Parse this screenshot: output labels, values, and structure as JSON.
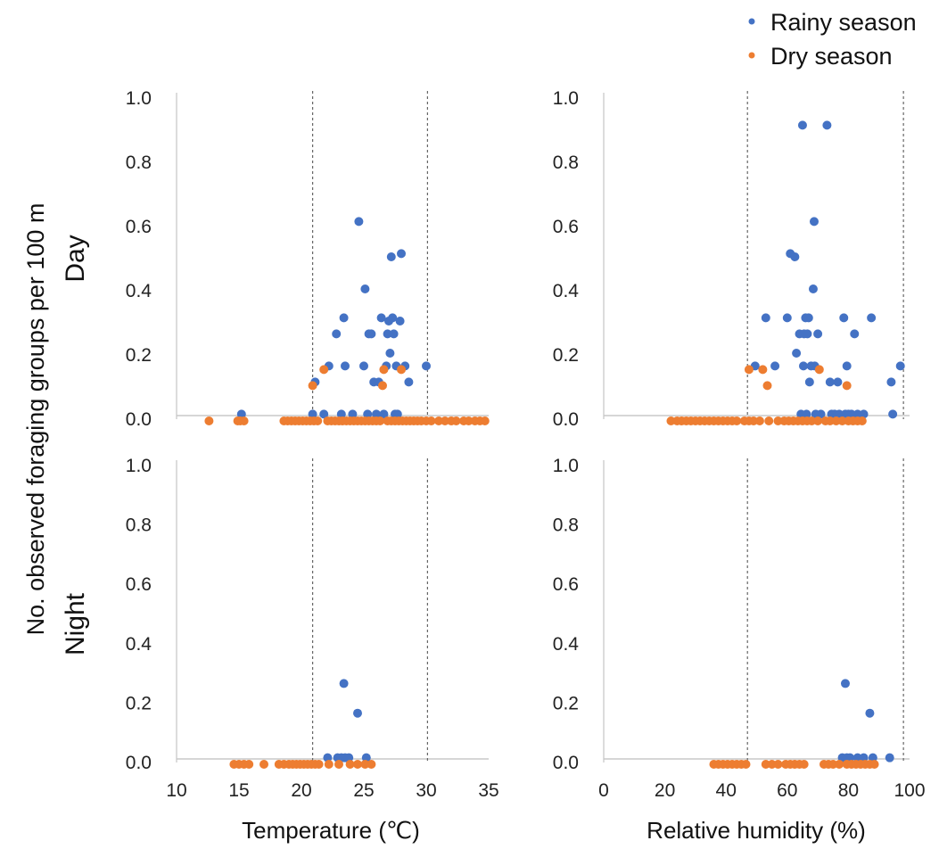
{
  "legend": [
    {
      "label": "Rainy season",
      "color": "#4472C4"
    },
    {
      "label": "Dry season",
      "color": "#ED7D31"
    }
  ],
  "shared_ylabel": "No. observed foraging groups per 100 m",
  "row_labels": [
    "Day",
    "Night"
  ],
  "chart_data": [
    {
      "type": "scatter",
      "id": "day-temperature",
      "row": "Day",
      "xlabel": "",
      "ylabel": "",
      "xlim": [
        10,
        35
      ],
      "ylim": [
        0,
        1
      ],
      "xticks": [
        10,
        15,
        20,
        25,
        30,
        35
      ],
      "yticks": [
        "0.0",
        "0.2",
        "0.4",
        "0.6",
        "0.8",
        "1.0"
      ],
      "reference_lines_x": [
        20.9,
        30.1
      ],
      "series": [
        {
          "name": "Rainy season",
          "color": "#4472C4",
          "points": [
            [
              15.2,
              0.01
            ],
            [
              20.9,
              0.01
            ],
            [
              21.1,
              0.11
            ],
            [
              21.8,
              0.01
            ],
            [
              22.2,
              0.16
            ],
            [
              22.8,
              0.26
            ],
            [
              23.2,
              0.01
            ],
            [
              23.4,
              0.31
            ],
            [
              23.5,
              0.16
            ],
            [
              24.1,
              0.01
            ],
            [
              24.6,
              0.61
            ],
            [
              25.0,
              0.16
            ],
            [
              25.1,
              0.4
            ],
            [
              25.3,
              0.01
            ],
            [
              25.4,
              0.26
            ],
            [
              25.6,
              0.26
            ],
            [
              25.8,
              0.11
            ],
            [
              26.0,
              0.01
            ],
            [
              26.2,
              0.11
            ],
            [
              26.4,
              0.31
            ],
            [
              26.6,
              0.01
            ],
            [
              26.8,
              0.16
            ],
            [
              26.9,
              0.26
            ],
            [
              27.0,
              0.3
            ],
            [
              27.1,
              0.2
            ],
            [
              27.2,
              0.5
            ],
            [
              27.3,
              0.31
            ],
            [
              27.4,
              0.26
            ],
            [
              27.5,
              0.01
            ],
            [
              27.6,
              0.16
            ],
            [
              27.7,
              0.01
            ],
            [
              27.9,
              0.3
            ],
            [
              28.0,
              0.51
            ],
            [
              28.3,
              0.16
            ],
            [
              28.6,
              0.11
            ],
            [
              30.0,
              0.16
            ]
          ]
        },
        {
          "name": "Dry season",
          "color": "#ED7D31",
          "points": [
            [
              12.6,
              0
            ],
            [
              14.9,
              0
            ],
            [
              15.1,
              0
            ],
            [
              15.4,
              0
            ],
            [
              18.6,
              0
            ],
            [
              18.9,
              0
            ],
            [
              19.2,
              0
            ],
            [
              19.5,
              0
            ],
            [
              19.8,
              0
            ],
            [
              20.1,
              0
            ],
            [
              20.4,
              0
            ],
            [
              20.7,
              0
            ],
            [
              20.9,
              0.11
            ],
            [
              21.0,
              0
            ],
            [
              21.3,
              0
            ],
            [
              21.8,
              0.16
            ],
            [
              22.1,
              0
            ],
            [
              22.4,
              0
            ],
            [
              22.7,
              0
            ],
            [
              23.0,
              0
            ],
            [
              23.3,
              0
            ],
            [
              23.6,
              0
            ],
            [
              23.9,
              0
            ],
            [
              24.2,
              0
            ],
            [
              24.5,
              0
            ],
            [
              24.8,
              0
            ],
            [
              25.1,
              0
            ],
            [
              25.4,
              0
            ],
            [
              25.7,
              0
            ],
            [
              26.0,
              0
            ],
            [
              26.3,
              0
            ],
            [
              26.5,
              0.11
            ],
            [
              26.6,
              0.16
            ],
            [
              26.9,
              0
            ],
            [
              27.2,
              0
            ],
            [
              27.5,
              0
            ],
            [
              27.8,
              0
            ],
            [
              28.0,
              0.16
            ],
            [
              28.1,
              0
            ],
            [
              28.4,
              0
            ],
            [
              28.7,
              0
            ],
            [
              29.0,
              0
            ],
            [
              29.3,
              0
            ],
            [
              29.6,
              0
            ],
            [
              30.0,
              0
            ],
            [
              30.4,
              0
            ],
            [
              31.0,
              0
            ],
            [
              31.5,
              0
            ],
            [
              32.0,
              0
            ],
            [
              32.4,
              0
            ],
            [
              33.0,
              0
            ],
            [
              33.4,
              0
            ],
            [
              33.9,
              0
            ],
            [
              34.3,
              0
            ],
            [
              34.7,
              0
            ]
          ]
        }
      ]
    },
    {
      "type": "scatter",
      "id": "day-humidity",
      "row": "Day",
      "xlabel": "",
      "ylabel": "",
      "xlim": [
        0,
        100
      ],
      "ylim": [
        0,
        1
      ],
      "xticks": [
        0,
        20,
        40,
        60,
        80,
        100
      ],
      "yticks": [
        "0.0",
        "0.2",
        "0.4",
        "0.6",
        "0.8",
        "1.0"
      ],
      "reference_lines_x": [
        47.0,
        98.0
      ],
      "series": [
        {
          "name": "Rainy season",
          "color": "#4472C4",
          "points": [
            [
              49.5,
              0.16
            ],
            [
              53.0,
              0.31
            ],
            [
              56.0,
              0.16
            ],
            [
              60.0,
              0.31
            ],
            [
              61.0,
              0.51
            ],
            [
              62.5,
              0.5
            ],
            [
              63.0,
              0.2
            ],
            [
              64.0,
              0.26
            ],
            [
              64.5,
              0.01
            ],
            [
              65.0,
              0.91
            ],
            [
              65.3,
              0.16
            ],
            [
              65.5,
              0.26
            ],
            [
              66.0,
              0.31
            ],
            [
              66.3,
              0.01
            ],
            [
              66.6,
              0.26
            ],
            [
              67.0,
              0.31
            ],
            [
              67.3,
              0.11
            ],
            [
              67.8,
              0.16
            ],
            [
              68.5,
              0.4
            ],
            [
              68.8,
              0.61
            ],
            [
              69.0,
              0.16
            ],
            [
              69.3,
              0.01
            ],
            [
              70.0,
              0.26
            ],
            [
              71.0,
              0.01
            ],
            [
              73.0,
              0.91
            ],
            [
              74.0,
              0.11
            ],
            [
              74.5,
              0.01
            ],
            [
              75.5,
              0.01
            ],
            [
              76.5,
              0.11
            ],
            [
              77.0,
              0.01
            ],
            [
              78.5,
              0.31
            ],
            [
              79.0,
              0.01
            ],
            [
              79.5,
              0.16
            ],
            [
              80.0,
              0.01
            ],
            [
              81.0,
              0.01
            ],
            [
              82.0,
              0.26
            ],
            [
              83.0,
              0.01
            ],
            [
              85.0,
              0.01
            ],
            [
              87.5,
              0.31
            ],
            [
              94.0,
              0.11
            ],
            [
              94.5,
              0.01
            ],
            [
              97.0,
              0.16
            ]
          ]
        },
        {
          "name": "Dry season",
          "color": "#ED7D31",
          "points": [
            [
              22.0,
              0
            ],
            [
              24.0,
              0
            ],
            [
              25.5,
              0
            ],
            [
              27.0,
              0
            ],
            [
              28.5,
              0
            ],
            [
              30.0,
              0
            ],
            [
              31.5,
              0
            ],
            [
              33.0,
              0
            ],
            [
              34.5,
              0
            ],
            [
              36.0,
              0
            ],
            [
              37.5,
              0
            ],
            [
              39.0,
              0
            ],
            [
              40.5,
              0
            ],
            [
              42.0,
              0
            ],
            [
              43.5,
              0
            ],
            [
              46.0,
              0
            ],
            [
              47.5,
              0
            ],
            [
              47.5,
              0.16
            ],
            [
              49.0,
              0
            ],
            [
              51.0,
              0
            ],
            [
              52.0,
              0.16
            ],
            [
              53.5,
              0.11
            ],
            [
              54.0,
              0
            ],
            [
              57.0,
              0
            ],
            [
              59.0,
              0
            ],
            [
              60.5,
              0
            ],
            [
              62.0,
              0
            ],
            [
              63.5,
              0
            ],
            [
              65.0,
              0
            ],
            [
              66.5,
              0
            ],
            [
              68.0,
              0
            ],
            [
              70.0,
              0
            ],
            [
              70.5,
              0.16
            ],
            [
              72.5,
              0
            ],
            [
              74.0,
              0
            ],
            [
              76.0,
              0
            ],
            [
              78.0,
              0
            ],
            [
              79.5,
              0.11
            ],
            [
              80.0,
              0
            ],
            [
              81.5,
              0
            ],
            [
              83.0,
              0
            ],
            [
              84.5,
              0
            ]
          ]
        }
      ]
    },
    {
      "type": "scatter",
      "id": "night-temperature",
      "row": "Night",
      "xlabel": "Temperature (℃)",
      "ylabel": "",
      "xlim": [
        10,
        35
      ],
      "ylim": [
        0,
        1
      ],
      "xticks": [
        10,
        15,
        20,
        25,
        30,
        35
      ],
      "yticks": [
        "0.0",
        "0.2",
        "0.4",
        "0.6",
        "0.8",
        "1.0"
      ],
      "reference_lines_x": [
        20.9,
        30.1
      ],
      "series": [
        {
          "name": "Rainy season",
          "color": "#4472C4",
          "points": [
            [
              22.1,
              0.01
            ],
            [
              22.9,
              0.01
            ],
            [
              23.2,
              0.01
            ],
            [
              23.4,
              0.26
            ],
            [
              23.5,
              0.01
            ],
            [
              23.8,
              0.01
            ],
            [
              24.5,
              0.16
            ],
            [
              25.2,
              0.01
            ]
          ]
        },
        {
          "name": "Dry season",
          "color": "#ED7D31",
          "points": [
            [
              14.6,
              0
            ],
            [
              15.0,
              0
            ],
            [
              15.4,
              0
            ],
            [
              15.8,
              0
            ],
            [
              17.0,
              0
            ],
            [
              18.2,
              0
            ],
            [
              18.6,
              0
            ],
            [
              19.0,
              0
            ],
            [
              19.3,
              0
            ],
            [
              19.6,
              0
            ],
            [
              19.9,
              0
            ],
            [
              20.2,
              0
            ],
            [
              20.5,
              0
            ],
            [
              20.8,
              0
            ],
            [
              21.1,
              0
            ],
            [
              21.4,
              0
            ],
            [
              22.2,
              0
            ],
            [
              23.0,
              0
            ],
            [
              23.9,
              0
            ],
            [
              24.5,
              0
            ],
            [
              25.1,
              0
            ],
            [
              25.6,
              0
            ]
          ]
        }
      ]
    },
    {
      "type": "scatter",
      "id": "night-humidity",
      "row": "Night",
      "xlabel": "Relative humidity (%)",
      "ylabel": "",
      "xlim": [
        0,
        100
      ],
      "ylim": [
        0,
        1
      ],
      "xticks": [
        0,
        20,
        40,
        60,
        80,
        100
      ],
      "yticks": [
        "0.0",
        "0.2",
        "0.4",
        "0.6",
        "0.8",
        "1.0"
      ],
      "reference_lines_x": [
        47.0,
        98.0
      ],
      "series": [
        {
          "name": "Rainy season",
          "color": "#4472C4",
          "points": [
            [
              78.0,
              0.01
            ],
            [
              79.0,
              0.26
            ],
            [
              79.5,
              0.01
            ],
            [
              80.5,
              0.01
            ],
            [
              83.0,
              0.01
            ],
            [
              85.0,
              0.01
            ],
            [
              87.0,
              0.16
            ],
            [
              88.0,
              0.01
            ],
            [
              93.5,
              0.01
            ]
          ]
        },
        {
          "name": "Dry season",
          "color": "#ED7D31",
          "points": [
            [
              36.0,
              0
            ],
            [
              37.5,
              0
            ],
            [
              39.0,
              0
            ],
            [
              40.5,
              0
            ],
            [
              42.0,
              0
            ],
            [
              43.5,
              0
            ],
            [
              45.0,
              0
            ],
            [
              46.5,
              0
            ],
            [
              53.0,
              0
            ],
            [
              55.0,
              0
            ],
            [
              57.0,
              0
            ],
            [
              59.5,
              0
            ],
            [
              61.0,
              0
            ],
            [
              62.5,
              0
            ],
            [
              64.0,
              0
            ],
            [
              65.5,
              0
            ],
            [
              72.0,
              0
            ],
            [
              73.5,
              0
            ],
            [
              75.0,
              0
            ],
            [
              77.0,
              0
            ],
            [
              79.5,
              0
            ],
            [
              81.0,
              0
            ],
            [
              82.5,
              0
            ],
            [
              84.0,
              0
            ],
            [
              85.5,
              0
            ],
            [
              87.0,
              0
            ],
            [
              88.5,
              0
            ]
          ]
        }
      ]
    }
  ]
}
